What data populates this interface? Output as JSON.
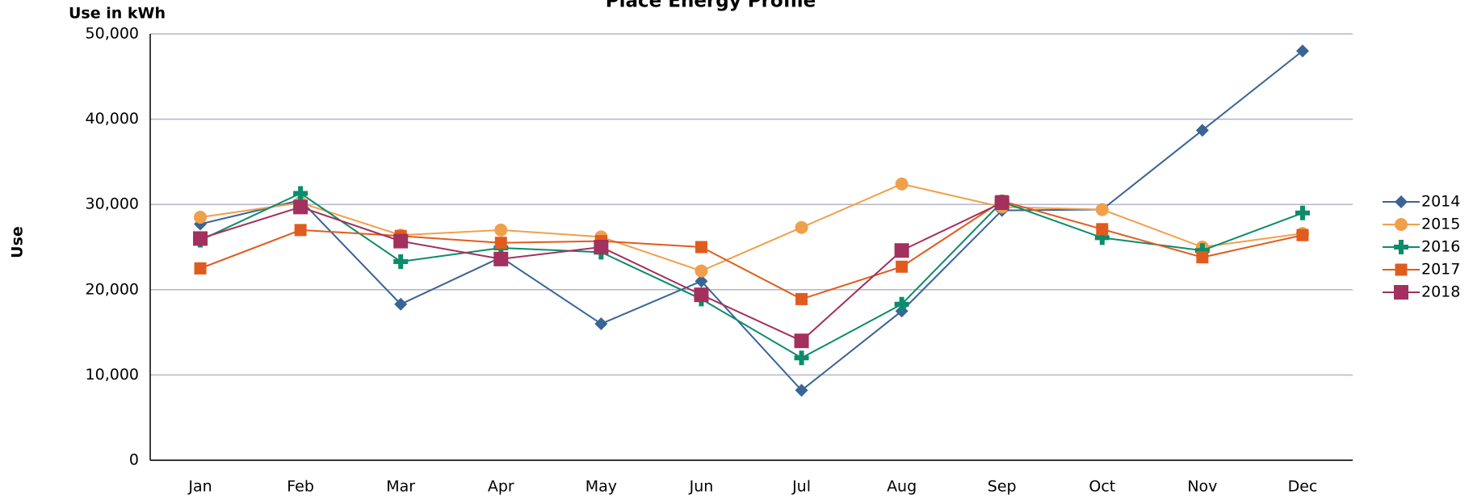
{
  "chart_data": {
    "type": "line",
    "title": "Place Energy Profile",
    "y_unit_label": "Use in kWh",
    "y_axis_label": "Use",
    "categories": [
      "Jan",
      "Feb",
      "Mar",
      "Apr",
      "May",
      "Jun",
      "Jul",
      "Aug",
      "Sep",
      "Oct",
      "Nov",
      "Dec"
    ],
    "series": [
      {
        "name": "2014",
        "color": "#3a6496",
        "marker": "diamond",
        "values": [
          27700,
          30500,
          18300,
          23800,
          16000,
          21000,
          8200,
          17500,
          29300,
          29400,
          38700,
          48000
        ]
      },
      {
        "name": "2015",
        "color": "#f0a04b",
        "marker": "circle",
        "values": [
          28500,
          30200,
          26400,
          27000,
          26200,
          22200,
          27300,
          32400,
          29700,
          29400,
          25000,
          26600
        ]
      },
      {
        "name": "2016",
        "color": "#0b8c6a",
        "marker": "plus",
        "values": [
          25800,
          31300,
          23300,
          24900,
          24400,
          18900,
          12000,
          18300,
          30300,
          26100,
          24600,
          29000
        ]
      },
      {
        "name": "2017",
        "color": "#e05c1e",
        "marker": "square",
        "values": [
          22500,
          27000,
          26300,
          25500,
          25700,
          25000,
          18900,
          22700,
          30400,
          27100,
          23800,
          26400
        ]
      },
      {
        "name": "2018",
        "color": "#a3305e",
        "marker": "bigsquare",
        "values": [
          26000,
          29700,
          25700,
          23600,
          25000,
          19400,
          14000,
          24600,
          30200,
          null,
          null,
          null
        ]
      }
    ],
    "ylim": [
      0,
      50000
    ],
    "yticks": [
      0,
      {
        "value": 10000,
        "label": "10,000"
      },
      {
        "value": 20000,
        "label": "20,000"
      },
      {
        "value": 30000,
        "label": "30,000"
      },
      {
        "value": 40000,
        "label": "40,000"
      },
      {
        "value": 50000,
        "label": "50,000"
      }
    ],
    "grid": true,
    "legend": "right"
  }
}
